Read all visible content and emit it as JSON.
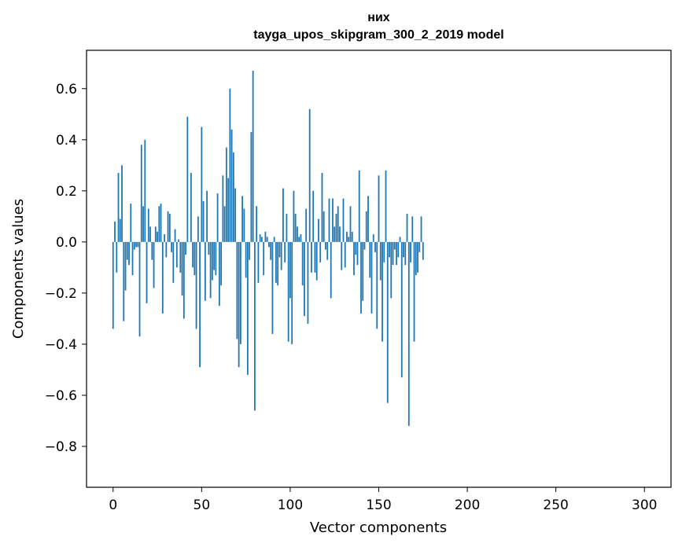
{
  "chart_data": {
    "type": "bar",
    "title_line1": "них",
    "title_line2": "tayga_upos_skipgram_300_2_2019 model",
    "xlabel": "Vector components",
    "ylabel": "Components values",
    "xlim": [
      -15,
      315
    ],
    "ylim": [
      -0.96,
      0.75
    ],
    "xticks": [
      0,
      50,
      100,
      150,
      200,
      250,
      300
    ],
    "yticks": [
      0.6,
      0.4,
      0.2,
      0.0,
      -0.2,
      -0.4,
      -0.6,
      -0.8
    ],
    "ytick_labels": [
      "0.6",
      "0.4",
      "0.2",
      "0.0",
      "−0.2",
      "−0.4",
      "−0.6",
      "−0.8"
    ],
    "bar_color": "#1f77b4",
    "values": [
      -0.34,
      0.08,
      -0.12,
      0.27,
      0.09,
      0.3,
      -0.31,
      -0.19,
      -0.07,
      -0.09,
      0.15,
      -0.13,
      -0.03,
      -0.02,
      -0.02,
      -0.37,
      0.38,
      0.14,
      0.4,
      -0.24,
      0.13,
      0.06,
      -0.07,
      -0.18,
      0.06,
      0.04,
      0.14,
      0.15,
      -0.28,
      0.03,
      -0.06,
      0.12,
      0.11,
      -0.04,
      -0.16,
      0.05,
      -0.1,
      0.01,
      -0.12,
      -0.21,
      -0.3,
      -0.05,
      0.49,
      0.0,
      0.27,
      -0.1,
      -0.13,
      -0.34,
      0.1,
      -0.49,
      0.45,
      0.16,
      -0.23,
      0.2,
      -0.05,
      -0.22,
      -0.15,
      -0.11,
      -0.13,
      0.19,
      -0.25,
      -0.17,
      0.26,
      0.14,
      0.37,
      0.25,
      0.6,
      0.44,
      0.35,
      0.21,
      -0.38,
      -0.49,
      -0.4,
      0.18,
      0.13,
      -0.14,
      -0.52,
      -0.07,
      0.43,
      0.67,
      -0.66,
      0.14,
      -0.16,
      0.03,
      0.02,
      -0.13,
      0.04,
      0.02,
      -0.02,
      -0.07,
      -0.36,
      0.02,
      -0.16,
      -0.17,
      -0.06,
      -0.11,
      0.21,
      -0.08,
      0.11,
      -0.39,
      -0.22,
      -0.4,
      0.2,
      0.11,
      0.06,
      0.02,
      0.03,
      -0.17,
      -0.29,
      0.13,
      -0.32,
      0.52,
      -0.12,
      0.2,
      -0.12,
      -0.15,
      0.09,
      -0.08,
      0.27,
      0.12,
      -0.03,
      -0.07,
      0.17,
      -0.22,
      0.17,
      0.06,
      0.11,
      0.14,
      0.06,
      -0.11,
      0.17,
      -0.1,
      0.04,
      0.02,
      0.14,
      0.04,
      -0.13,
      -0.05,
      -0.09,
      0.28,
      -0.28,
      -0.23,
      -0.03,
      0.12,
      0.18,
      -0.14,
      -0.28,
      0.03,
      -0.04,
      -0.34,
      0.26,
      -0.15,
      -0.39,
      -0.08,
      0.28,
      -0.63,
      -0.06,
      -0.22,
      -0.09,
      -0.03,
      -0.09,
      -0.06,
      0.02,
      -0.53,
      -0.06,
      -0.09,
      0.11,
      -0.72,
      -0.08,
      0.1,
      -0.39,
      -0.13,
      -0.12,
      -0.04,
      0.1,
      -0.07
    ]
  }
}
